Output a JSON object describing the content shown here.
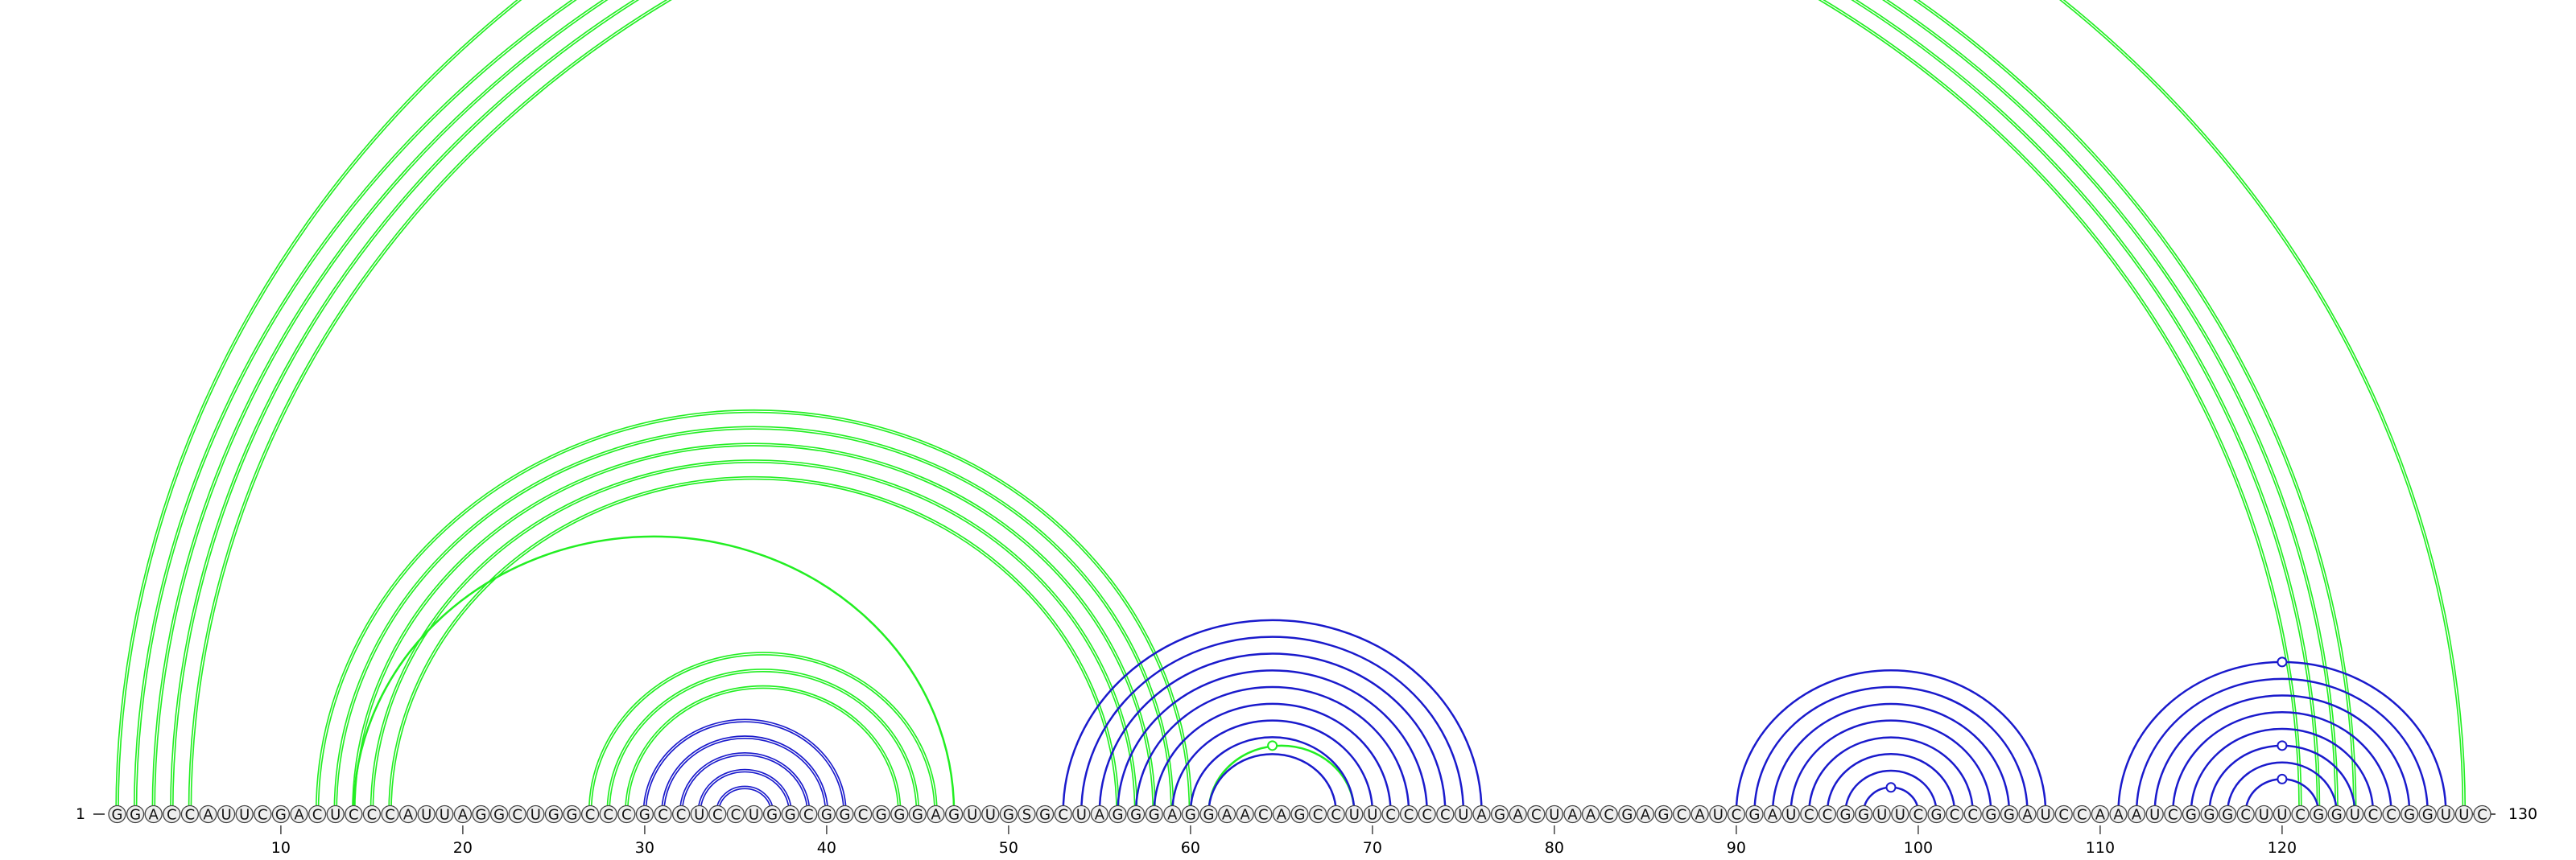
{
  "arc_diagram": {
    "sequence": "GGACCAUUCGACUCCCAUUAGGCUGGCCCGCCUCCUGGCGGCGGGAGUUGSGCUAGGGAGGAACAGCCUUCCCCUAGACUAACGAGCAUCGAUCCGGUUCGCCGGAUCCAAAUCGGGCUUCGGUCCGGUUC",
    "start_label": "1",
    "end_label": "130",
    "ticks": [
      10,
      20,
      30,
      40,
      50,
      60,
      70,
      80,
      90,
      100,
      110,
      120
    ],
    "colors": {
      "green": "#22ee22",
      "blue": "#1a1acc",
      "nucleotide_fill": "#eeeeee",
      "nucleotide_stroke": "#444444"
    },
    "green_arcs": [
      [
        1,
        130,
        2
      ],
      [
        2,
        124,
        2
      ],
      [
        3,
        123,
        2
      ],
      [
        4,
        122,
        2
      ],
      [
        5,
        121,
        2
      ],
      [
        12,
        60,
        2
      ],
      [
        13,
        59,
        2
      ],
      [
        14,
        58,
        2
      ],
      [
        15,
        57,
        2
      ],
      [
        16,
        56,
        2
      ],
      [
        14,
        47,
        1
      ],
      [
        27,
        46,
        2
      ],
      [
        28,
        45,
        2
      ],
      [
        29,
        44,
        2
      ],
      [
        61,
        69,
        1
      ]
    ],
    "blue_arcs": [
      [
        30,
        41,
        2
      ],
      [
        31,
        40,
        2
      ],
      [
        32,
        39,
        2
      ],
      [
        33,
        38,
        2
      ],
      [
        34,
        37,
        2
      ],
      [
        53,
        76,
        1
      ],
      [
        54,
        75,
        1
      ],
      [
        55,
        74,
        1
      ],
      [
        56,
        73,
        1
      ],
      [
        57,
        72,
        1
      ],
      [
        58,
        71,
        1
      ],
      [
        59,
        70,
        1
      ],
      [
        60,
        69,
        1
      ],
      [
        61,
        68,
        1
      ],
      [
        90,
        107,
        1
      ],
      [
        91,
        106,
        1
      ],
      [
        92,
        105,
        1
      ],
      [
        93,
        104,
        1
      ],
      [
        94,
        103,
        1
      ],
      [
        95,
        102,
        1
      ],
      [
        96,
        101,
        1
      ],
      [
        97,
        100,
        1
      ],
      [
        111,
        129,
        1
      ],
      [
        112,
        128,
        1
      ],
      [
        113,
        127,
        1
      ],
      [
        114,
        126,
        1
      ],
      [
        115,
        125,
        1
      ],
      [
        116,
        124,
        1
      ],
      [
        117,
        123,
        1
      ],
      [
        118,
        122,
        1
      ]
    ],
    "loop_markers": [
      {
        "position": 64.5,
        "color": "green",
        "span": 8
      },
      {
        "position": 98.5,
        "color": "blue",
        "span": 3
      },
      {
        "position": 120,
        "color": "blue",
        "span": 4
      },
      {
        "position": 120,
        "color": "blue",
        "span": 8
      },
      {
        "position": 120,
        "color": "blue",
        "span": 18
      }
    ]
  }
}
